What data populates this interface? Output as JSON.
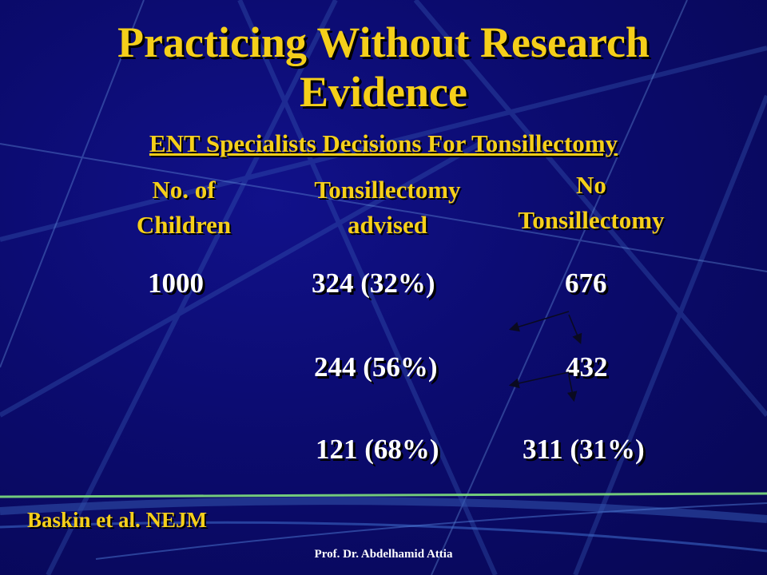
{
  "slide": {
    "title_line1": "Practicing Without Research",
    "title_line2": "Evidence",
    "subtitle": "ENT Specialists Decisions For Tonsillectomy"
  },
  "table": {
    "headers": {
      "children": [
        "No. of",
        "Children"
      ],
      "advised": [
        "Tonsillectomy",
        "advised"
      ],
      "no": [
        "No",
        "Tonsillectomy"
      ]
    },
    "rows": [
      {
        "children": "1000",
        "advised": "324 (32%)",
        "no": "676"
      },
      {
        "children": "",
        "advised": "244 (56%)",
        "no": "432"
      },
      {
        "children": "",
        "advised": "121 (68%)",
        "no": "311 (31%)"
      }
    ]
  },
  "reference": "Baskin et al. NEJM",
  "footer": "Prof. Dr. Abdelhamid Attia",
  "colors": {
    "background": "#0b0b6e",
    "title": "#f5cf1a",
    "values": "#ffffff",
    "accent_line": "#7ee07e"
  }
}
